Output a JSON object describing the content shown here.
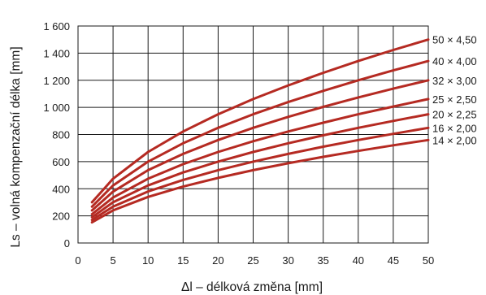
{
  "chart_data": {
    "type": "line",
    "title": "",
    "xlabel": "Δl – délková změna [mm]",
    "ylabel": "Ls – volná kompenzační délka [mm]",
    "xlim": [
      0,
      50
    ],
    "ylim": [
      0,
      1600
    ],
    "grid": true,
    "line_color": "#b52a22",
    "x_ticks": [
      {
        "value": 0,
        "label": "0"
      },
      {
        "value": 5,
        "label": "5"
      },
      {
        "value": 10,
        "label": "10"
      },
      {
        "value": 15,
        "label": "15"
      },
      {
        "value": 20,
        "label": "20"
      },
      {
        "value": 25,
        "label": "25"
      },
      {
        "value": 30,
        "label": "30"
      },
      {
        "value": 35,
        "label": "35"
      },
      {
        "value": 40,
        "label": "40"
      },
      {
        "value": 45,
        "label": "45"
      },
      {
        "value": 50,
        "label": "50"
      }
    ],
    "y_ticks": [
      {
        "value": 0,
        "label": "0"
      },
      {
        "value": 200,
        "label": "200"
      },
      {
        "value": 400,
        "label": "400"
      },
      {
        "value": 600,
        "label": "600"
      },
      {
        "value": 800,
        "label": "800"
      },
      {
        "value": 1000,
        "label": "1 000"
      },
      {
        "value": 1200,
        "label": "1 200"
      },
      {
        "value": 1400,
        "label": "1 400"
      },
      {
        "value": 1600,
        "label": "1 600"
      }
    ],
    "x": [
      2,
      5,
      10,
      15,
      20,
      25,
      30,
      35,
      40,
      45,
      50
    ],
    "series": [
      {
        "name": "50 × 4,50",
        "values": [
          300,
          474,
          671,
          822,
          949,
          1061,
          1162,
          1255,
          1342,
          1423,
          1500
        ]
      },
      {
        "name": "40 × 4,00",
        "values": [
          268,
          424,
          600,
          735,
          849,
          949,
          1039,
          1122,
          1200,
          1273,
          1342
        ]
      },
      {
        "name": "32 × 3,00",
        "values": [
          240,
          379,
          537,
          657,
          759,
          849,
          930,
          1004,
          1073,
          1138,
          1200
        ]
      },
      {
        "name": "25 × 2,50",
        "values": [
          212,
          335,
          474,
          581,
          671,
          750,
          822,
          887,
          949,
          1006,
          1061
        ]
      },
      {
        "name": "20 × 2,25",
        "values": [
          190,
          300,
          424,
          520,
          600,
          671,
          735,
          794,
          849,
          900,
          949
        ]
      },
      {
        "name": "16 × 2,00",
        "values": [
          170,
          268,
          380,
          465,
          537,
          600,
          657,
          710,
          759,
          805,
          849
        ]
      },
      {
        "name": "14 × 2,00",
        "values": [
          152,
          240,
          340,
          416,
          480,
          537,
          588,
          635,
          679,
          720,
          759
        ]
      }
    ]
  }
}
